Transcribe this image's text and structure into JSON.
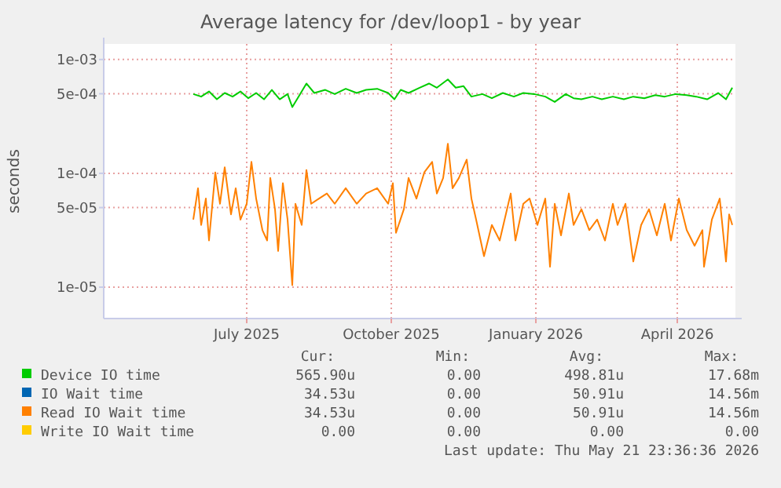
{
  "chart_data": {
    "type": "line",
    "title": "Average latency for /dev/loop1 - by year",
    "ylabel": "seconds",
    "log": "y",
    "grid": true,
    "legend": "bottom",
    "marker": "none",
    "line_style": "solid",
    "xlim": [
      "2025-04-01",
      "2026-05-08"
    ],
    "xticks": [
      {
        "value": "2025-07-01",
        "label": "July 2025"
      },
      {
        "value": "2025-10-01",
        "label": "October 2025"
      },
      {
        "value": "2026-01-01",
        "label": "January 2026"
      },
      {
        "value": "2026-04-01",
        "label": "April 2026"
      }
    ],
    "ylim": [
      5.3e-06,
      0.00137
    ],
    "yticks": [
      {
        "value": 1e-05,
        "label": "1e-05"
      },
      {
        "value": 5e-05,
        "label": "5e-05"
      },
      {
        "value": 0.0001,
        "label": "1e-04"
      },
      {
        "value": 0.0005,
        "label": "5e-04"
      },
      {
        "value": 0.001,
        "label": "1e-03"
      }
    ],
    "series": [
      {
        "name": "Device IO time",
        "color": "#00cc00",
        "x": [
          "2025-05-28",
          "2025-06-02",
          "2025-06-07",
          "2025-06-12",
          "2025-06-17",
          "2025-06-22",
          "2025-06-27",
          "2025-07-02",
          "2025-07-07",
          "2025-07-12",
          "2025-07-17",
          "2025-07-22",
          "2025-07-27",
          "2025-07-30",
          "2025-08-03",
          "2025-08-08",
          "2025-08-13",
          "2025-08-20",
          "2025-08-26",
          "2025-09-02",
          "2025-09-09",
          "2025-09-15",
          "2025-09-22",
          "2025-09-29",
          "2025-10-03",
          "2025-10-07",
          "2025-10-12",
          "2025-10-19",
          "2025-10-25",
          "2025-10-30",
          "2025-11-06",
          "2025-11-11",
          "2025-11-16",
          "2025-11-21",
          "2025-11-28",
          "2025-12-04",
          "2025-12-11",
          "2025-12-18",
          "2025-12-24",
          "2025-12-31",
          "2026-01-07",
          "2026-01-13",
          "2026-01-20",
          "2026-01-25",
          "2026-01-30",
          "2026-02-06",
          "2026-02-12",
          "2026-02-19",
          "2026-02-26",
          "2026-03-04",
          "2026-03-11",
          "2026-03-18",
          "2026-03-24",
          "2026-03-31",
          "2026-04-07",
          "2026-04-13",
          "2026-04-20",
          "2026-04-27",
          "2026-05-02",
          "2026-05-06"
        ],
        "values": [
          0.000497,
          0.000472,
          0.000524,
          0.000447,
          0.000508,
          0.000472,
          0.000524,
          0.000457,
          0.000508,
          0.000447,
          0.000541,
          0.000447,
          0.000497,
          0.000382,
          0.000472,
          0.000615,
          0.000508,
          0.000541,
          0.000497,
          0.000553,
          0.000508,
          0.000541,
          0.000553,
          0.000508,
          0.000447,
          0.000541,
          0.000508,
          0.000565,
          0.000615,
          0.000565,
          0.000668,
          0.000565,
          0.000583,
          0.000472,
          0.000497,
          0.000457,
          0.000508,
          0.000472,
          0.000508,
          0.000497,
          0.000472,
          0.000424,
          0.000497,
          0.000457,
          0.000447,
          0.000472,
          0.000447,
          0.000472,
          0.000447,
          0.000472,
          0.000457,
          0.000487,
          0.000472,
          0.000497,
          0.000487,
          0.000472,
          0.000447,
          0.000508,
          0.000447,
          0.000565
        ]
      },
      {
        "name": "IO Wait time",
        "color": "#0066b3"
      },
      {
        "name": "Read IO Wait time",
        "color": "#ff8000",
        "x": [
          "2025-05-28",
          "2025-05-31",
          "2025-06-02",
          "2025-06-05",
          "2025-06-07",
          "2025-06-11",
          "2025-06-14",
          "2025-06-17",
          "2025-06-21",
          "2025-06-24",
          "2025-06-27",
          "2025-07-01",
          "2025-07-04",
          "2025-07-07",
          "2025-07-11",
          "2025-07-14",
          "2025-07-16",
          "2025-07-19",
          "2025-07-21",
          "2025-07-24",
          "2025-07-27",
          "2025-07-30",
          "2025-08-01",
          "2025-08-05",
          "2025-08-08",
          "2025-08-11",
          "2025-08-16",
          "2025-08-21",
          "2025-08-26",
          "2025-09-02",
          "2025-09-09",
          "2025-09-15",
          "2025-09-22",
          "2025-09-29",
          "2025-10-02",
          "2025-10-04",
          "2025-10-09",
          "2025-10-12",
          "2025-10-17",
          "2025-10-22",
          "2025-10-27",
          "2025-10-30",
          "2025-11-03",
          "2025-11-06",
          "2025-11-09",
          "2025-11-13",
          "2025-11-18",
          "2025-11-21",
          "2025-11-24",
          "2025-11-29",
          "2025-12-04",
          "2025-12-09",
          "2025-12-16",
          "2025-12-19",
          "2025-12-24",
          "2025-12-28",
          "2026-01-02",
          "2026-01-07",
          "2026-01-10",
          "2026-01-13",
          "2026-01-17",
          "2026-01-22",
          "2026-01-25",
          "2026-01-30",
          "2026-02-04",
          "2026-02-09",
          "2026-02-14",
          "2026-02-19",
          "2026-02-22",
          "2026-02-27",
          "2026-03-04",
          "2026-03-09",
          "2026-03-14",
          "2026-03-19",
          "2026-03-24",
          "2026-03-28",
          "2026-04-02",
          "2026-04-07",
          "2026-04-12",
          "2026-04-17",
          "2026-04-18",
          "2026-04-23",
          "2026-04-28",
          "2026-05-02",
          "2026-05-04",
          "2026-05-06"
        ],
        "values": [
          3.92e-05,
          7.4e-05,
          3.52e-05,
          6e-05,
          2.57e-05,
          0.000102,
          5.4e-05,
          0.000113,
          4.36e-05,
          7.4e-05,
          3.92e-05,
          5.4e-05,
          0.000126,
          6e-05,
          3.17e-05,
          2.57e-05,
          9.1e-05,
          4.84e-05,
          2.08e-05,
          8.2e-05,
          3.92e-05,
          1.04e-05,
          5.4e-05,
          3.52e-05,
          0.000107,
          5.4e-05,
          6e-05,
          6.65e-05,
          5.4e-05,
          7.4e-05,
          5.4e-05,
          6.65e-05,
          7.4e-05,
          5.4e-05,
          8.2e-05,
          3e-05,
          4.84e-05,
          9.1e-05,
          6e-05,
          0.000102,
          0.000126,
          6.65e-05,
          9.1e-05,
          0.000182,
          7.4e-05,
          9.1e-05,
          0.000132,
          6e-05,
          3.92e-05,
          1.87e-05,
          3.52e-05,
          2.57e-05,
          6.65e-05,
          2.57e-05,
          5.4e-05,
          6e-05,
          3.52e-05,
          6e-05,
          1.51e-05,
          5.4e-05,
          2.85e-05,
          6.65e-05,
          3.52e-05,
          4.84e-05,
          3.17e-05,
          3.92e-05,
          2.57e-05,
          5.4e-05,
          3.52e-05,
          5.4e-05,
          1.68e-05,
          3.52e-05,
          4.84e-05,
          2.85e-05,
          5.4e-05,
          2.57e-05,
          6e-05,
          3.17e-05,
          2.31e-05,
          3.17e-05,
          1.51e-05,
          3.92e-05,
          6e-05,
          1.68e-05,
          4.36e-05,
          3.52e-05
        ]
      },
      {
        "name": "Write IO Wait time",
        "color": "#ffcc00"
      }
    ],
    "annotations": [
      "Cur:",
      "Min:",
      "Avg:",
      "Max:",
      "565.90u",
      "0.00",
      "498.81u",
      "17.68m",
      "34.53u",
      "0.00",
      "50.91u",
      "14.56m",
      "34.53u",
      "0.00",
      "50.91u",
      "14.56m",
      "0.00",
      "0.00",
      "0.00",
      "0.00",
      "Last update: Thu May 21 23:36:36 2026"
    ]
  }
}
